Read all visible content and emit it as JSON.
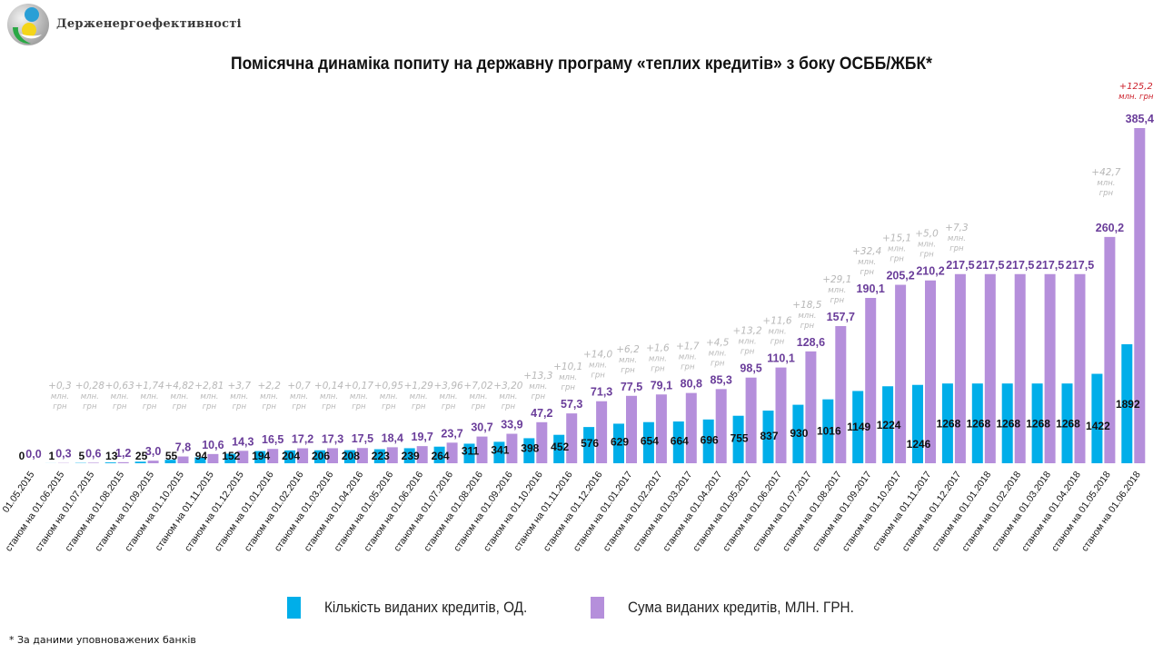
{
  "header": {
    "org_name": "Держенергоефективності",
    "title": "Помісячна динаміка попиту на державну програму «теплих кредитів» з боку ОСББ/ЖБК*"
  },
  "legend": {
    "count_label": "Кількість виданих кредитів, ОД.",
    "sum_label": "Сума виданих кредитів, МЛН. ГРН."
  },
  "footnote": "* За даними уповноважених банків",
  "colors": {
    "count": "#00aee9",
    "sum": "#b58fdb",
    "sum_label": "#6a3d9a",
    "count_label": "#111111",
    "delta": "#b8b8b8",
    "delta_highlight": "#cc1f2a"
  },
  "chart_data": {
    "type": "bar",
    "title": "Помісячна динаміка попиту на державну програму «теплих кредитів» з боку ОСББ/ЖБК*",
    "xlabel": "",
    "ylabel": "",
    "legend_position": "bottom",
    "grid": false,
    "categories": [
      "01.05.2015",
      "станом на 01.06.2015",
      "станом на 01.07.2015",
      "станом на 01.08.2015",
      "станом на 01.09.2015",
      "станом на 01.10.2015",
      "станом на 01.11.2015",
      "станом на 01.12.2015",
      "станом на 01.01.2016",
      "станом на 01.02.2016",
      "станом на 01.03.2016",
      "станом на 01.04.2016",
      "станом на 01.05.2016",
      "станом на 01.06.2016",
      "станом на 01.07.2016",
      "станом на 01.08.2016",
      "станом на 01.09.2016",
      "станом на 01.10.2016",
      "станом на 01.11.2016",
      "станом на 01.12.2016",
      "станом на 01.01.2017",
      "станом на 01.02.2017",
      "станом на 01.03.2017",
      "станом на 01.04.2017",
      "станом на 01.05.2017",
      "станом на 01.06.2017",
      "станом на 01.07.2017",
      "станом на 01.08.2017",
      "станом на 01.09.2017",
      "станом на 01.10.2017",
      "станом на 01.11.2017",
      "станом на 01.12.2017",
      "станом на 01.01.2018",
      "станом на 01.02.2018",
      "станом на 01.03.2018",
      "станом на 01.04.2018",
      "станом на 01.05.2018",
      "станом на 01.06.2018"
    ],
    "series": [
      {
        "name": "Кількість виданих кредитів, ОД.",
        "values": [
          0,
          1,
          5,
          13,
          25,
          55,
          94,
          152,
          194,
          204,
          206,
          208,
          223,
          239,
          264,
          311,
          341,
          398,
          452,
          576,
          629,
          654,
          664,
          696,
          755,
          837,
          930,
          1016,
          1149,
          1224,
          1246,
          1268,
          1268,
          1268,
          1268,
          1268,
          1422,
          1892
        ],
        "labels": [
          "0",
          "1",
          "5",
          "13",
          "25",
          "55",
          "94",
          "152",
          "194",
          "204",
          "206",
          "208",
          "223",
          "239",
          "264",
          "311",
          "341",
          "398",
          "452",
          "576",
          "629",
          "654",
          "664",
          "696",
          "755",
          "837",
          "930",
          "1016",
          "1149",
          "1224",
          "1246",
          "1268",
          "1268",
          "1268",
          "1268",
          "1268",
          "1422",
          "1892"
        ],
        "ylim": [
          0,
          1892
        ]
      },
      {
        "name": "Сума виданих кредитів, МЛН. ГРН.",
        "values": [
          0.0,
          0.3,
          0.6,
          1.2,
          3.0,
          7.8,
          10.6,
          14.3,
          16.5,
          17.2,
          17.3,
          17.5,
          18.4,
          19.7,
          23.7,
          30.7,
          33.9,
          47.2,
          57.3,
          71.3,
          77.5,
          79.1,
          80.8,
          85.3,
          98.5,
          110.1,
          128.6,
          157.7,
          190.1,
          205.2,
          210.2,
          217.5,
          217.5,
          217.5,
          217.5,
          217.5,
          260.2,
          385.4
        ],
        "labels": [
          "0,0",
          "0,3",
          "0,6",
          "1,2",
          "3,0",
          "7,8",
          "10,6",
          "14,3",
          "16,5",
          "17,2",
          "17,3",
          "17,5",
          "18,4",
          "19,7",
          "23,7",
          "30,7",
          "33,9",
          "47,2",
          "57,3",
          "71,3",
          "77,5",
          "79,1",
          "80,8",
          "85,3",
          "98,5",
          "110,1",
          "128,6",
          "157,7",
          "190,1",
          "205,2",
          "210,2",
          "217,5",
          "217,5",
          "217,5",
          "217,5",
          "217,5",
          "260,2",
          "385,4"
        ],
        "ylim": [
          0,
          385.4
        ]
      }
    ],
    "annotations": [
      {
        "category_index": 1,
        "text": "+0,3",
        "unit": [
          "млн.",
          "грн"
        ]
      },
      {
        "category_index": 2,
        "text": "+0,28",
        "unit": [
          "млн.",
          "грн"
        ]
      },
      {
        "category_index": 3,
        "text": "+0,63",
        "unit": [
          "млн.",
          "грн"
        ]
      },
      {
        "category_index": 4,
        "text": "+1,74",
        "unit": [
          "млн.",
          "грн"
        ]
      },
      {
        "category_index": 5,
        "text": "+4,82",
        "unit": [
          "млн.",
          "грн"
        ]
      },
      {
        "category_index": 6,
        "text": "+2,81",
        "unit": [
          "млн.",
          "грн"
        ]
      },
      {
        "category_index": 7,
        "text": "+3,7",
        "unit": [
          "млн.",
          "грн"
        ]
      },
      {
        "category_index": 8,
        "text": "+2,2",
        "unit": [
          "млн.",
          "грн"
        ]
      },
      {
        "category_index": 9,
        "text": "+0,7",
        "unit": [
          "млн.",
          "грн"
        ]
      },
      {
        "category_index": 10,
        "text": "+0,14",
        "unit": [
          "млн.",
          "грн"
        ]
      },
      {
        "category_index": 11,
        "text": "+0,17",
        "unit": [
          "млн.",
          "грн"
        ]
      },
      {
        "category_index": 12,
        "text": "+0,95",
        "unit": [
          "млн.",
          "грн"
        ]
      },
      {
        "category_index": 13,
        "text": "+1,29",
        "unit": [
          "млн.",
          "грн"
        ]
      },
      {
        "category_index": 14,
        "text": "+3,96",
        "unit": [
          "млн.",
          "грн"
        ]
      },
      {
        "category_index": 15,
        "text": "+7,02",
        "unit": [
          "млн.",
          "грн"
        ]
      },
      {
        "category_index": 16,
        "text": "+3,20",
        "unit": [
          "млн.",
          "грн"
        ]
      },
      {
        "category_index": 17,
        "text": "+13,3",
        "unit": [
          "млн.",
          "грн"
        ]
      },
      {
        "category_index": 18,
        "text": "+10,1",
        "unit": [
          "млн.",
          "грн"
        ]
      },
      {
        "category_index": 19,
        "text": "+14,0",
        "unit": [
          "млн.",
          "грн"
        ]
      },
      {
        "category_index": 20,
        "text": "+6,2",
        "unit": [
          "млн.",
          "грн"
        ]
      },
      {
        "category_index": 21,
        "text": "+1,6",
        "unit": [
          "млн.",
          "грн"
        ]
      },
      {
        "category_index": 22,
        "text": "+1,7",
        "unit": [
          "млн.",
          "грн"
        ]
      },
      {
        "category_index": 23,
        "text": "+4,5",
        "unit": [
          "млн.",
          "грн"
        ]
      },
      {
        "category_index": 24,
        "text": "+13,2",
        "unit": [
          "млн.",
          "грн"
        ]
      },
      {
        "category_index": 25,
        "text": "+11,6",
        "unit": [
          "млн.",
          "грн"
        ]
      },
      {
        "category_index": 26,
        "text": "+18,5",
        "unit": [
          "млн.",
          "грн"
        ]
      },
      {
        "category_index": 27,
        "text": "+29,1",
        "unit": [
          "млн.",
          "грн"
        ]
      },
      {
        "category_index": 28,
        "text": "+32,4",
        "unit": [
          "млн.",
          "грн"
        ]
      },
      {
        "category_index": 29,
        "text": "+15,1",
        "unit": [
          "млн.",
          "грн"
        ]
      },
      {
        "category_index": 30,
        "text": "+5,0",
        "unit": [
          "млн.",
          "грн"
        ]
      },
      {
        "category_index": 31,
        "text": "+7,3",
        "unit": [
          "млн.",
          "грн"
        ]
      },
      {
        "category_index": 36,
        "text": "+42,7",
        "unit": [
          "млн.",
          "грн"
        ]
      },
      {
        "category_index": 37,
        "text": "+125,2",
        "unit": [
          "млн. грн"
        ],
        "highlight": true
      }
    ]
  }
}
